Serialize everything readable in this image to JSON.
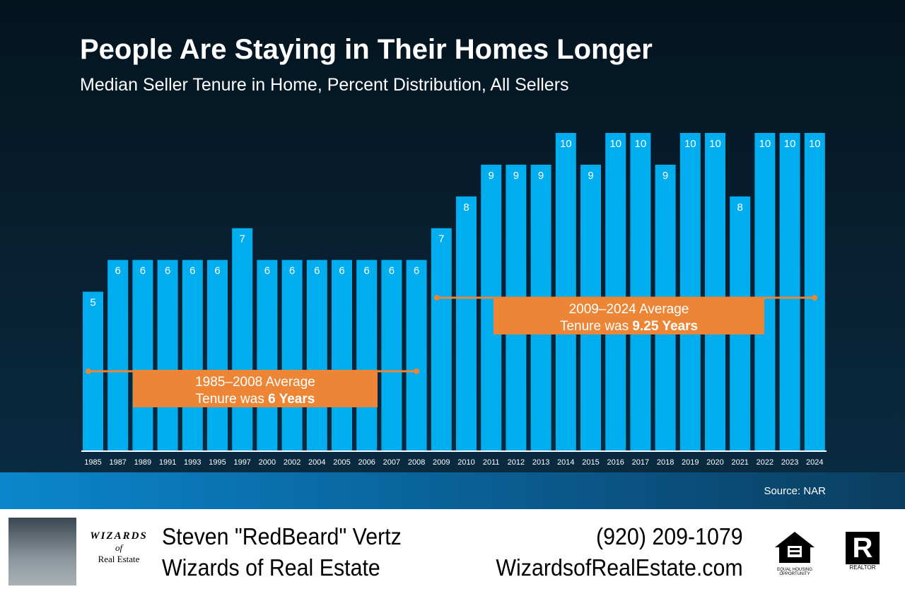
{
  "chart_data": {
    "type": "bar",
    "title": "People Are Staying in Their Homes Longer",
    "subtitle": "Median Seller Tenure in Home, Percent Distribution, All Sellers",
    "categories": [
      "1985",
      "1987",
      "1989",
      "1991",
      "1993",
      "1995",
      "1997",
      "2000",
      "2002",
      "2004",
      "2005",
      "2006",
      "2007",
      "2008",
      "2009",
      "2010",
      "2011",
      "2012",
      "2013",
      "2014",
      "2015",
      "2016",
      "2017",
      "2018",
      "2019",
      "2020",
      "2021",
      "2022",
      "2023",
      "2024"
    ],
    "values": [
      5,
      6,
      6,
      6,
      6,
      6,
      7,
      6,
      6,
      6,
      6,
      6,
      6,
      6,
      7,
      8,
      9,
      9,
      9,
      10,
      9,
      10,
      10,
      9,
      10,
      10,
      8,
      10,
      10,
      10
    ],
    "ylim": [
      0,
      10
    ],
    "grid": false,
    "bar_color": "#00aeef",
    "annotations": [
      {
        "line1": "1985–2008 Average",
        "line2_prefix": "Tenure was ",
        "line2_bold": "6 Years",
        "from": "1985",
        "to": "2008",
        "color": "#ec8636"
      },
      {
        "line1": "2009–2024 Average",
        "line2_prefix": "Tenure was ",
        "line2_bold": "9.25 Years",
        "from": "2009",
        "to": "2024",
        "color": "#ec8636"
      }
    ],
    "source": "Source: NAR"
  },
  "footer": {
    "agent_name": "Steven \"RedBeard\" Vertz",
    "company": "Wizards of Real Estate",
    "phone": "(920) 209-1079",
    "website": "WizardsofRealEstate.com",
    "logo_text": "WIZARDS of Real Estate",
    "equal_housing": "EQUAL HOUSING OPPORTUNITY",
    "realtor": "REALTOR"
  }
}
